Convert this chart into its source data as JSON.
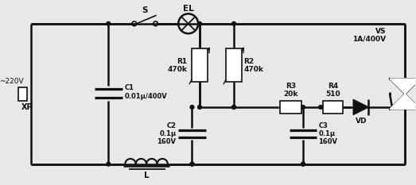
{
  "bg_color": "#e8e8e8",
  "line_color": "#111111",
  "lw": 1.8,
  "fig_w": 5.23,
  "fig_h": 2.33,
  "labels": {
    "xp": "XP",
    "v220": "~220V",
    "c1": "C1\n0.01μ/400V",
    "s": "S",
    "el": "EL",
    "r1": "R1\n470k",
    "r2": "R2\n470k",
    "c2": "C2\n0.1μ\n160V",
    "r3": "R3\n20k",
    "c3": "C3\n0.1μ\n160V",
    "r4": "R4\n510",
    "vd": "VD",
    "vs": "VS\n1A/400V",
    "l": "L"
  }
}
